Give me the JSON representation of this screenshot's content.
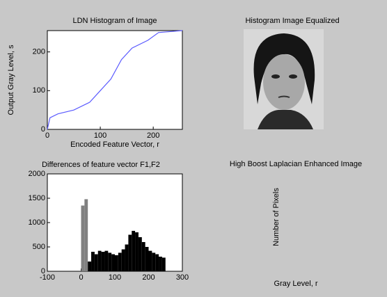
{
  "chart_data": [
    {
      "type": "line",
      "title": "LDN Histogram of Image",
      "xlabel": "Encoded Feature Vector, r",
      "ylabel": "Output Gray Level, s",
      "x": [
        0,
        5,
        20,
        50,
        80,
        100,
        120,
        140,
        160,
        190,
        210,
        255
      ],
      "values": [
        0,
        30,
        40,
        50,
        70,
        100,
        130,
        180,
        210,
        230,
        250,
        255
      ],
      "color": "#5a5aff",
      "xlim": [
        0,
        255
      ],
      "ylim": [
        0,
        255
      ],
      "xticks": [
        0,
        100,
        200
      ],
      "yticks": [
        0,
        100,
        200
      ]
    },
    {
      "type": "image",
      "title": "Histogram Image Equalized"
    },
    {
      "type": "histogram",
      "title": "Differences of feature vector F1,F2",
      "bins": [
        0,
        10,
        20,
        30,
        40,
        50,
        60,
        70,
        80,
        90,
        100,
        110,
        120,
        130,
        140,
        150,
        160,
        170,
        180,
        190,
        200,
        210,
        220,
        230,
        240,
        250
      ],
      "counts": [
        1350,
        1480,
        200,
        400,
        350,
        420,
        400,
        420,
        380,
        350,
        330,
        380,
        450,
        550,
        750,
        830,
        800,
        700,
        600,
        500,
        420,
        380,
        350,
        300,
        280
      ],
      "colors": [
        "#808080",
        "#808080",
        "#000000",
        "#000000",
        "#000000",
        "#000000",
        "#000000",
        "#000000",
        "#000000",
        "#000000",
        "#000000",
        "#000000",
        "#000000",
        "#000000",
        "#000000",
        "#000000",
        "#000000",
        "#000000",
        "#000000",
        "#000000",
        "#000000",
        "#000000",
        "#000000",
        "#000000",
        "#000000"
      ],
      "xlim": [
        -100,
        300
      ],
      "ylim": [
        0,
        2000
      ],
      "xticks": [
        -100,
        0,
        100,
        200,
        300
      ],
      "yticks": [
        0,
        500,
        1000,
        1500,
        2000
      ]
    },
    {
      "type": "blank",
      "title": "High Boost Laplacian Enhanced Image",
      "xlabel": "Gray Level, r",
      "ylabel": "Number of Pixels"
    }
  ]
}
